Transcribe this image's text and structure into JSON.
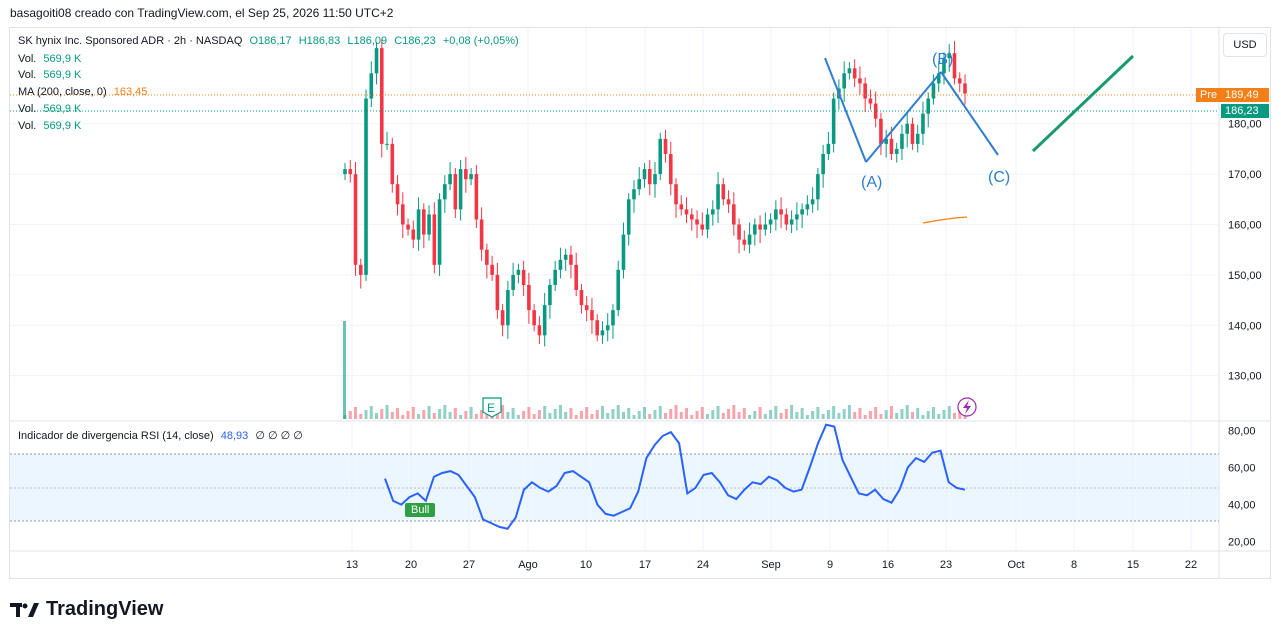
{
  "header": {
    "text": "basagoiti08 creado con TradingView.com, el Sep 25, 2026 11:50 UTC+2"
  },
  "legend": {
    "symbol": "SK hynix Inc. Sponsored ADR · 2h · NASDAQ",
    "o": "O186,17",
    "h": "H186,83",
    "l": "L186,09",
    "c": "C186,23",
    "chg": "+0,08 (+0,05%)",
    "vol_label": "Vol.",
    "vol_value": "569,9 K",
    "ma_label": "MA (200, close, 0)",
    "ma_value": "163,45"
  },
  "rsi_legend": {
    "label": "Indicador de divergencia RSI (14, close)",
    "value": "48,93",
    "extras": "∅ ∅ ∅ ∅"
  },
  "currency": "USD",
  "pre_tag": {
    "label": "Pre",
    "value": "189,49"
  },
  "last_tag": {
    "value": "186,23"
  },
  "bull_label": "Bull",
  "earnings_marker": "E",
  "wave_labels": {
    "a": "(A)",
    "b": "(B)",
    "c": "(C)"
  },
  "brand": "TradingView",
  "colors": {
    "up": "#089981",
    "down": "#f23645",
    "wave": "#2e7dd0",
    "projection": "#1a9a6c",
    "ma": "#f57f17",
    "rsi": "#2962ff"
  },
  "chart_data": [
    {
      "type": "candlestick",
      "title": "SK hynix Inc. Sponsored ADR · 2h · NASDAQ",
      "y_ticks": [
        "130,00",
        "140,00",
        "150,00",
        "160,00",
        "170,00",
        "180,00"
      ],
      "x_ticks": [
        "13",
        "20",
        "27",
        "Ago",
        "10",
        "17",
        "24",
        "Sep",
        "9",
        "16",
        "23",
        "Oct",
        "8",
        "15",
        "22"
      ],
      "ylim": [
        121,
        199
      ],
      "close_series": [
        171,
        170,
        152,
        150,
        185,
        190,
        195,
        176,
        176,
        168,
        164,
        160,
        159,
        157,
        163,
        158,
        162,
        152,
        165,
        168,
        170,
        163,
        171,
        169,
        170,
        161,
        155,
        152,
        150,
        143,
        140,
        147,
        150,
        151,
        148,
        143,
        140,
        138,
        144,
        148,
        151,
        153,
        154,
        152,
        147,
        144,
        143,
        141,
        138,
        139,
        140,
        143,
        151,
        158,
        165,
        167,
        169,
        171,
        168,
        170,
        177,
        174,
        168,
        164,
        163,
        162,
        161,
        160,
        159,
        162,
        163,
        168,
        165,
        164,
        160,
        157,
        156,
        158,
        160,
        159,
        160,
        161,
        163,
        162,
        160,
        161,
        162,
        163,
        164,
        165,
        170,
        174,
        176,
        185,
        187,
        190,
        191,
        189,
        188,
        185,
        184,
        181,
        176,
        177,
        174,
        175,
        178,
        180,
        176,
        178,
        182,
        185,
        188,
        190,
        193,
        194,
        189,
        188,
        186
      ],
      "volume_note": "Vol. 569,9 K",
      "ma_value": "163,45"
    },
    {
      "type": "line",
      "title": "Indicador de divergencia RSI (14, close)",
      "y_ticks": [
        "20,00",
        "40,00",
        "60,00",
        "80,00"
      ],
      "ylim": [
        15,
        85
      ],
      "values": [
        54,
        42,
        40,
        44,
        46,
        42,
        55,
        57,
        58,
        56,
        50,
        44,
        32,
        30,
        28,
        27,
        33,
        48,
        52,
        49,
        47,
        50,
        57,
        58,
        55,
        52,
        40,
        35,
        34,
        36,
        38,
        47,
        65,
        72,
        77,
        79,
        73,
        46,
        49,
        56,
        57,
        52,
        45,
        43,
        48,
        52,
        51,
        55,
        53,
        49,
        47,
        48,
        60,
        73,
        83,
        82,
        64,
        55,
        46,
        45,
        48,
        43,
        41,
        48,
        60,
        65,
        63,
        68,
        69,
        52,
        49,
        48
      ]
    }
  ]
}
